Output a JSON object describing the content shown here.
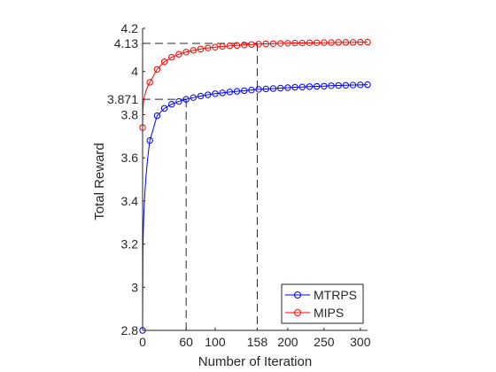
{
  "chart_data": {
    "type": "line",
    "title": "",
    "xlabel": "Number of Iteration",
    "ylabel": "Total Reward",
    "xlim": [
      0,
      310
    ],
    "ylim": [
      2.8,
      4.2
    ],
    "xticks": [
      0,
      60,
      100,
      158,
      200,
      250,
      300
    ],
    "yticks": [
      2.8,
      3,
      3.2,
      3.4,
      3.6,
      3.8,
      3.871,
      4,
      4.13,
      4.2
    ],
    "ytick_labels": [
      "2.8",
      "3",
      "3.2",
      "3.4",
      "3.6",
      "3.8",
      "3.871",
      "4",
      "4.13",
      "4.2"
    ],
    "legend_position": "bottom-right",
    "grid": false,
    "reference_lines": [
      {
        "series": "MIPS",
        "x": 158,
        "y": 4.13
      },
      {
        "series": "MTRPS",
        "x": 60,
        "y": 3.871
      }
    ],
    "series": [
      {
        "name": "MTRPS",
        "color": "#0000ff",
        "x": [
          0,
          10,
          20,
          30,
          40,
          50,
          60,
          70,
          80,
          90,
          100,
          110,
          120,
          130,
          140,
          150,
          160,
          170,
          180,
          190,
          200,
          210,
          220,
          230,
          240,
          250,
          260,
          270,
          280,
          290,
          300,
          310
        ],
        "y": [
          2.8,
          3.68,
          3.795,
          3.829,
          3.848,
          3.861,
          3.871,
          3.879,
          3.886,
          3.892,
          3.897,
          3.901,
          3.905,
          3.908,
          3.911,
          3.914,
          3.917,
          3.919,
          3.921,
          3.923,
          3.925,
          3.927,
          3.928,
          3.93,
          3.931,
          3.932,
          3.934,
          3.935,
          3.936,
          3.937,
          3.938,
          3.939
        ]
      },
      {
        "name": "MIPS",
        "color": "#ff0000",
        "x": [
          0,
          10,
          20,
          30,
          40,
          50,
          60,
          70,
          80,
          90,
          100,
          110,
          120,
          130,
          140,
          150,
          160,
          170,
          180,
          190,
          200,
          210,
          220,
          230,
          240,
          250,
          260,
          270,
          280,
          290,
          300,
          310
        ],
        "y": [
          3.74,
          3.95,
          4.01,
          4.045,
          4.066,
          4.08,
          4.09,
          4.098,
          4.104,
          4.109,
          4.113,
          4.116,
          4.119,
          4.121,
          4.123,
          4.125,
          4.127,
          4.128,
          4.129,
          4.13,
          4.131,
          4.132,
          4.132,
          4.133,
          4.133,
          4.134,
          4.134,
          4.135,
          4.135,
          4.135,
          4.136,
          4.136
        ]
      }
    ]
  }
}
